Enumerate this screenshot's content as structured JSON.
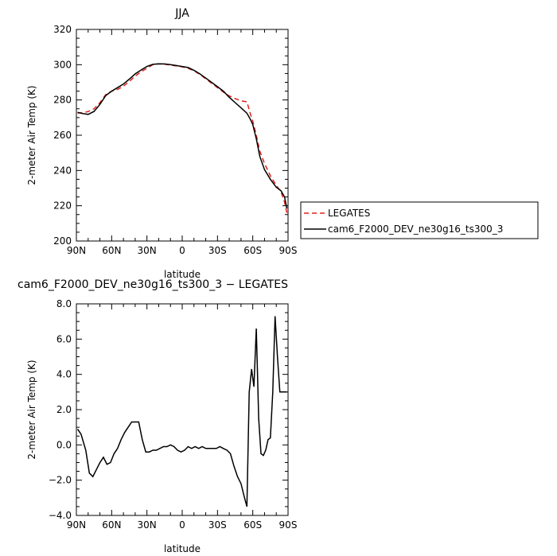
{
  "chart_data": [
    {
      "type": "line",
      "title": "JJA",
      "xlabel": "latitude",
      "ylabel": "2-meter Air Temp (K)",
      "x_ticks": [
        {
          "value": 90,
          "label": "90N"
        },
        {
          "value": 60,
          "label": "60N"
        },
        {
          "value": 30,
          "label": "30N"
        },
        {
          "value": 0,
          "label": "0"
        },
        {
          "value": -30,
          "label": "30S"
        },
        {
          "value": -60,
          "label": "60S"
        },
        {
          "value": -90,
          "label": "90S"
        }
      ],
      "y_ticks": [
        {
          "value": 200,
          "label": "200"
        },
        {
          "value": 220,
          "label": "220"
        },
        {
          "value": 240,
          "label": "240"
        },
        {
          "value": 260,
          "label": "260"
        },
        {
          "value": 280,
          "label": "280"
        },
        {
          "value": 300,
          "label": "300"
        },
        {
          "value": 320,
          "label": "320"
        }
      ],
      "xlim": [
        90,
        -90
      ],
      "ylim": [
        200,
        320
      ],
      "legend_position": "right",
      "series": [
        {
          "name": "LEGATES",
          "color": "#e0201b",
          "dash": "dashed",
          "x": [
            89,
            85,
            80,
            75,
            70,
            65,
            60,
            55,
            50,
            45,
            40,
            35,
            30,
            25,
            20,
            15,
            10,
            5,
            0,
            -5,
            -10,
            -15,
            -20,
            -25,
            -30,
            -35,
            -40,
            -45,
            -50,
            -55,
            -58,
            -60,
            -63,
            -66,
            -70,
            -75,
            -80,
            -84,
            -87,
            -89
          ],
          "values": [
            272.5,
            272.8,
            273.4,
            275.0,
            278.5,
            283.0,
            285.0,
            286.0,
            287.8,
            290.5,
            293.5,
            296.0,
            298.0,
            300.0,
            300.5,
            300.3,
            299.8,
            299.3,
            298.8,
            298.0,
            296.5,
            294.5,
            292.0,
            289.5,
            287.0,
            284.5,
            282.3,
            280.8,
            279.5,
            279.0,
            272.0,
            268.0,
            260.0,
            251.0,
            244.0,
            237.0,
            231.5,
            228.0,
            222.0,
            216.0
          ]
        },
        {
          "name": "cam6_F2000_DEV_ne30g16_ts300_3",
          "color": "#000000",
          "dash": "solid",
          "x": [
            89,
            85,
            80,
            75,
            70,
            65,
            60,
            55,
            50,
            45,
            40,
            35,
            30,
            25,
            20,
            15,
            10,
            5,
            0,
            -5,
            -10,
            -15,
            -20,
            -25,
            -30,
            -35,
            -40,
            -45,
            -50,
            -55,
            -58,
            -60,
            -63,
            -66,
            -70,
            -75,
            -80,
            -84,
            -87,
            -89
          ],
          "values": [
            273.0,
            272.3,
            271.8,
            273.5,
            277.5,
            282.5,
            285.0,
            287.0,
            289.0,
            291.8,
            294.8,
            297.0,
            299.0,
            300.2,
            300.5,
            300.4,
            300.0,
            299.5,
            299.0,
            298.4,
            296.8,
            294.8,
            292.4,
            290.0,
            287.5,
            285.0,
            281.5,
            278.5,
            275.5,
            272.5,
            269.0,
            266.0,
            258.0,
            248.0,
            240.5,
            235.0,
            230.5,
            228.5,
            225.0,
            218.5
          ]
        }
      ]
    },
    {
      "type": "line",
      "title": "cam6_F2000_DEV_ne30g16_ts300_3 − LEGATES",
      "xlabel": "latitude",
      "ylabel": "2-meter Air Temp (K)",
      "x_ticks": [
        {
          "value": 90,
          "label": "90N"
        },
        {
          "value": 60,
          "label": "60N"
        },
        {
          "value": 30,
          "label": "30N"
        },
        {
          "value": 0,
          "label": "0"
        },
        {
          "value": -30,
          "label": "30S"
        },
        {
          "value": -60,
          "label": "60S"
        },
        {
          "value": -90,
          "label": "90S"
        }
      ],
      "y_ticks": [
        {
          "value": -4,
          "label": "−4.0"
        },
        {
          "value": -2,
          "label": "−2.0"
        },
        {
          "value": 0,
          "label": "0.0"
        },
        {
          "value": 2,
          "label": "2.0"
        },
        {
          "value": 4,
          "label": "4.0"
        },
        {
          "value": 6,
          "label": "6.0"
        },
        {
          "value": 8,
          "label": "8.0"
        }
      ],
      "xlim": [
        90,
        -90
      ],
      "ylim": [
        -4,
        8
      ],
      "series": [
        {
          "color": "#000000",
          "dash": "solid",
          "x": [
            89,
            86,
            82,
            79,
            76,
            73,
            70,
            67,
            64,
            61,
            58,
            55,
            52,
            49,
            46,
            43,
            40,
            37,
            34,
            31,
            28,
            25,
            22,
            19,
            16,
            13,
            10,
            7,
            4,
            1,
            -2,
            -5,
            -8,
            -11,
            -14,
            -17,
            -20,
            -23,
            -26,
            -29,
            -32,
            -35,
            -38,
            -41,
            -44,
            -47,
            -50,
            -53,
            -55,
            -57,
            -59,
            -61,
            -63,
            -65,
            -67,
            -69,
            -71,
            -73,
            -75,
            -77,
            -79,
            -81,
            -83,
            -85,
            -87,
            -89
          ],
          "values": [
            0.9,
            0.6,
            -0.3,
            -1.6,
            -1.8,
            -1.4,
            -1.0,
            -0.7,
            -1.1,
            -1.0,
            -0.5,
            -0.2,
            0.3,
            0.7,
            1.0,
            1.3,
            1.3,
            1.3,
            0.3,
            -0.4,
            -0.4,
            -0.3,
            -0.3,
            -0.2,
            -0.1,
            -0.1,
            0.0,
            -0.1,
            -0.3,
            -0.4,
            -0.3,
            -0.1,
            -0.2,
            -0.1,
            -0.2,
            -0.1,
            -0.2,
            -0.2,
            -0.2,
            -0.2,
            -0.1,
            -0.2,
            -0.3,
            -0.5,
            -1.2,
            -1.8,
            -2.2,
            -3.0,
            -3.5,
            3.0,
            4.3,
            3.3,
            6.6,
            1.5,
            -0.5,
            -0.6,
            -0.3,
            0.3,
            0.4,
            3.0,
            7.3,
            5.0,
            3.0,
            3.0,
            3.0,
            3.0
          ]
        }
      ]
    }
  ]
}
